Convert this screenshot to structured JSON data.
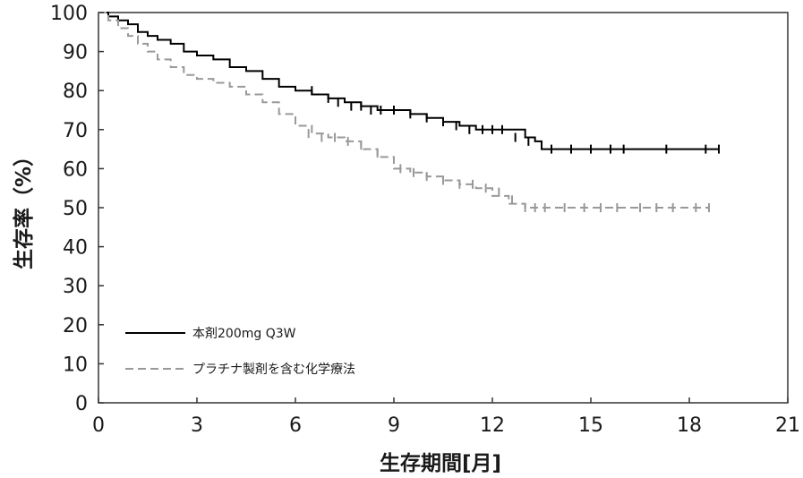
{
  "chart_data": {
    "type": "line",
    "subtype": "kaplan-meier",
    "xlabel": "生存期間[月]",
    "ylabel": "生存率（%）",
    "xlim": [
      0,
      21
    ],
    "ylim": [
      0,
      100
    ],
    "xticks": [
      0,
      3,
      6,
      9,
      12,
      15,
      18,
      21
    ],
    "yticks": [
      0,
      10,
      20,
      30,
      40,
      50,
      60,
      70,
      80,
      90,
      100
    ],
    "grid": false,
    "legend_position": "bottom-left",
    "series": [
      {
        "name": "本剤200mg Q3W",
        "color": "#000000",
        "dash": false,
        "x": [
          0,
          0.3,
          0.6,
          0.9,
          1.2,
          1.5,
          1.8,
          2.2,
          2.6,
          3.0,
          3.5,
          4.0,
          4.5,
          5.0,
          5.5,
          6.0,
          6.5,
          7.0,
          7.5,
          8.0,
          8.5,
          9.0,
          9.5,
          10.0,
          10.5,
          11.0,
          11.5,
          12.0,
          12.5,
          13.0,
          13.3,
          13.5,
          14.0,
          15.0,
          16.0,
          17.0,
          18.0,
          18.9
        ],
        "y": [
          100,
          99,
          98,
          97,
          95,
          94,
          93,
          92,
          90,
          89,
          88,
          86,
          85,
          83,
          81,
          80,
          79,
          78,
          77,
          76,
          75,
          75,
          74,
          73,
          72,
          71,
          70,
          70,
          70,
          68,
          67,
          65,
          65,
          65,
          65,
          65,
          65,
          65
        ],
        "censor_x": [
          6.5,
          7.0,
          7.3,
          7.7,
          8.0,
          8.3,
          8.6,
          9.0,
          9.5,
          10.0,
          10.5,
          10.9,
          11.3,
          11.7,
          12.0,
          12.3,
          12.7,
          13.1,
          13.8,
          14.4,
          15.0,
          15.6,
          16.0,
          17.3,
          18.5,
          18.9
        ],
        "censor_y": [
          80,
          78,
          77,
          76,
          76,
          75,
          75,
          75,
          74,
          73,
          72,
          71,
          70,
          70,
          70,
          70,
          68,
          67,
          65,
          65,
          65,
          65,
          65,
          65,
          65,
          65
        ]
      },
      {
        "name": "プラチナ製剤を含む化学療法",
        "color": "#999999",
        "dash": true,
        "x": [
          0,
          0.3,
          0.6,
          0.9,
          1.2,
          1.5,
          1.8,
          2.2,
          2.6,
          3.0,
          3.5,
          4.0,
          4.5,
          5.0,
          5.5,
          6.0,
          6.5,
          7.0,
          7.5,
          8.0,
          8.5,
          9.0,
          9.5,
          10.0,
          10.5,
          11.0,
          11.5,
          12.0,
          12.5,
          13.0,
          14.0,
          15.0,
          16.0,
          17.0,
          18.0,
          18.6
        ],
        "y": [
          100,
          98,
          96,
          94,
          92,
          90,
          88,
          86,
          84,
          83,
          82,
          81,
          79,
          77,
          74,
          71,
          69,
          68,
          67,
          65,
          63,
          60,
          59,
          58,
          57,
          56,
          55,
          53,
          51,
          50,
          50,
          50,
          50,
          50,
          50,
          50
        ],
        "censor_x": [
          6.4,
          6.8,
          7.2,
          7.6,
          8.0,
          8.5,
          9.2,
          9.6,
          10.0,
          10.5,
          11.0,
          11.4,
          11.8,
          12.2,
          12.6,
          13.0,
          13.3,
          13.6,
          14.2,
          14.8,
          15.3,
          15.8,
          16.5,
          17.0,
          17.5,
          18.2,
          18.6
        ],
        "censor_y": [
          69,
          68,
          68,
          67,
          66,
          64,
          60,
          59,
          58,
          57,
          56,
          56,
          55,
          54,
          52,
          50,
          50,
          50,
          50,
          50,
          50,
          50,
          50,
          50,
          50,
          50,
          50
        ]
      }
    ]
  }
}
